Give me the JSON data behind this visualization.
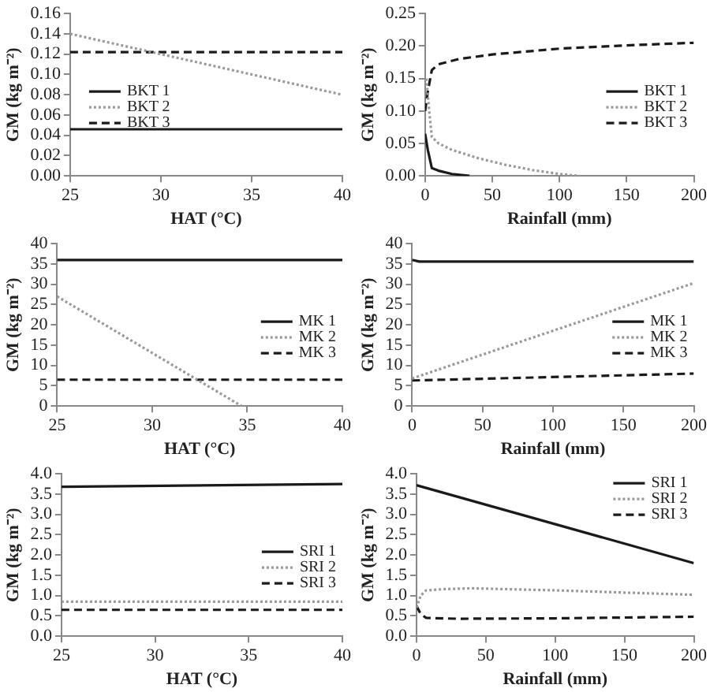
{
  "chart_data": [
    {
      "type": "line",
      "xlabel": "HAT (°C)",
      "ylabel": "GM (kg m⁻²)",
      "xlim": [
        25,
        40
      ],
      "xticks": [
        25,
        30,
        35,
        40
      ],
      "ylim": [
        0,
        0.16
      ],
      "yticks": [
        {
          "value": 0,
          "label": "0.00"
        },
        {
          "value": 0.02,
          "label": "0.02"
        },
        {
          "value": 0.04,
          "label": "0.04"
        },
        {
          "value": 0.06,
          "label": "0.06"
        },
        {
          "value": 0.08,
          "label": "0.08"
        },
        {
          "value": 0.1,
          "label": "0.10"
        },
        {
          "value": 0.12,
          "label": "0.12"
        },
        {
          "value": 0.14,
          "label": "0.14"
        },
        {
          "value": 0.16,
          "label": "0.16"
        }
      ],
      "grid": false,
      "legend": "left",
      "marker": "none",
      "series": [
        {
          "name": "BKT 1",
          "color": "#1a1a1a",
          "line_style": "solid",
          "x": [
            25,
            40
          ],
          "values": [
            0.046,
            0.046
          ]
        },
        {
          "name": "BKT 2",
          "color": "#999999",
          "line_style": "dotted",
          "x": [
            25,
            40
          ],
          "values": [
            0.14,
            0.08
          ]
        },
        {
          "name": "BKT 3",
          "color": "#1a1a1a",
          "line_style": "dashed",
          "x": [
            25,
            40
          ],
          "values": [
            0.122,
            0.122
          ]
        }
      ]
    },
    {
      "type": "line",
      "xlabel": "Rainfall (mm)",
      "ylabel": "GM (kg m⁻²)",
      "xlim": [
        0,
        200
      ],
      "xticks": [
        0,
        50,
        100,
        150,
        200
      ],
      "ylim": [
        0,
        0.25
      ],
      "yticks": [
        {
          "value": 0,
          "label": "0.00"
        },
        {
          "value": 0.05,
          "label": "0.05"
        },
        {
          "value": 0.1,
          "label": "0.10"
        },
        {
          "value": 0.15,
          "label": "0.15"
        },
        {
          "value": 0.2,
          "label": "0.20"
        },
        {
          "value": 0.25,
          "label": "0.25"
        }
      ],
      "grid": false,
      "legend": "right",
      "marker": "none",
      "series": [
        {
          "name": "BKT 1",
          "color": "#1a1a1a",
          "line_style": "solid",
          "x": [
            0,
            2,
            5,
            10,
            20,
            33
          ],
          "values": [
            0.065,
            0.04,
            0.012,
            0.008,
            0.003,
            0
          ]
        },
        {
          "name": "BKT 2",
          "color": "#999999",
          "line_style": "dotted",
          "x": [
            1,
            3,
            5,
            10,
            20,
            40,
            60,
            80,
            100,
            115
          ],
          "values": [
            0.15,
            0.1,
            0.06,
            0.05,
            0.04,
            0.027,
            0.017,
            0.009,
            0.003,
            0
          ]
        },
        {
          "name": "BKT 3",
          "color": "#1a1a1a",
          "line_style": "dashed",
          "x": [
            0,
            2,
            5,
            10,
            25,
            50,
            100,
            150,
            200
          ],
          "values": [
            0.1,
            0.13,
            0.163,
            0.172,
            0.18,
            0.187,
            0.196,
            0.201,
            0.205
          ]
        }
      ]
    },
    {
      "type": "line",
      "xlabel": "HAT (°C)",
      "ylabel": "GM (kg m⁻²)",
      "xlim": [
        25,
        40
      ],
      "xticks": [
        25,
        30,
        35,
        40
      ],
      "ylim": [
        0,
        40
      ],
      "yticks": [
        0,
        5,
        10,
        15,
        20,
        25,
        30,
        35,
        40
      ],
      "grid": false,
      "legend": "right",
      "marker": "none",
      "series": [
        {
          "name": "MK 1",
          "color": "#1a1a1a",
          "line_style": "solid",
          "x": [
            25,
            40
          ],
          "values": [
            36,
            36
          ]
        },
        {
          "name": "MK 2",
          "color": "#999999",
          "line_style": "dotted",
          "x": [
            25,
            34.7
          ],
          "values": [
            27,
            0
          ]
        },
        {
          "name": "MK 3",
          "color": "#1a1a1a",
          "line_style": "dashed",
          "x": [
            25,
            40
          ],
          "values": [
            6.5,
            6.5
          ]
        }
      ]
    },
    {
      "type": "line",
      "xlabel": "Rainfall (mm)",
      "ylabel": "GM (kg m⁻²)",
      "xlim": [
        0,
        200
      ],
      "xticks": [
        0,
        50,
        100,
        150,
        200
      ],
      "ylim": [
        0,
        40
      ],
      "yticks": [
        0,
        5,
        10,
        15,
        20,
        25,
        30,
        35,
        40
      ],
      "grid": false,
      "legend": "right",
      "marker": "none",
      "series": [
        {
          "name": "MK 1",
          "color": "#1a1a1a",
          "line_style": "solid",
          "x": [
            0,
            5,
            200
          ],
          "values": [
            36,
            35.6,
            35.6
          ]
        },
        {
          "name": "MK 2",
          "color": "#999999",
          "line_style": "dotted",
          "x": [
            0,
            200
          ],
          "values": [
            6.8,
            30.3
          ]
        },
        {
          "name": "MK 3",
          "color": "#1a1a1a",
          "line_style": "dashed",
          "x": [
            0,
            200
          ],
          "values": [
            6.3,
            8
          ]
        }
      ]
    },
    {
      "type": "line",
      "xlabel": "HAT (°C)",
      "ylabel": "GM (kg m⁻²)",
      "xlim": [
        25,
        40
      ],
      "xticks": [
        25,
        30,
        35,
        40
      ],
      "ylim": [
        0,
        4
      ],
      "yticks": [
        {
          "value": 0,
          "label": "0.0"
        },
        {
          "value": 0.5,
          "label": "0.5"
        },
        {
          "value": 1,
          "label": "1.0"
        },
        {
          "value": 1.5,
          "label": "1.5"
        },
        {
          "value": 2,
          "label": "2.0"
        },
        {
          "value": 2.5,
          "label": "2.5"
        },
        {
          "value": 3,
          "label": "3.0"
        },
        {
          "value": 3.5,
          "label": "3.5"
        },
        {
          "value": 4,
          "label": "4.0"
        }
      ],
      "grid": false,
      "legend": "right",
      "marker": "none",
      "series": [
        {
          "name": "SRI 1",
          "color": "#1a1a1a",
          "line_style": "solid",
          "x": [
            25,
            40
          ],
          "values": [
            3.68,
            3.75
          ]
        },
        {
          "name": "SRI 2",
          "color": "#999999",
          "line_style": "dotted",
          "x": [
            25,
            40
          ],
          "values": [
            0.85,
            0.85
          ]
        },
        {
          "name": "SRI 3",
          "color": "#1a1a1a",
          "line_style": "dashed",
          "x": [
            25,
            40
          ],
          "values": [
            0.65,
            0.65
          ]
        }
      ]
    },
    {
      "type": "line",
      "xlabel": "Rainfall (mm)",
      "ylabel": "GM (kg m⁻²)",
      "xlim": [
        0,
        200
      ],
      "xticks": [
        0,
        50,
        100,
        150,
        200
      ],
      "ylim": [
        0,
        4
      ],
      "yticks": [
        {
          "value": 0,
          "label": "0.0"
        },
        {
          "value": 0.5,
          "label": "0.5"
        },
        {
          "value": 1,
          "label": "1.0"
        },
        {
          "value": 1.5,
          "label": "1.5"
        },
        {
          "value": 2,
          "label": "2.0"
        },
        {
          "value": 2.5,
          "label": "2.5"
        },
        {
          "value": 3,
          "label": "3.0"
        },
        {
          "value": 3.5,
          "label": "3.5"
        },
        {
          "value": 4,
          "label": "4.0"
        }
      ],
      "grid": false,
      "legend": "top right",
      "marker": "none",
      "series": [
        {
          "name": "SRI 1",
          "color": "#1a1a1a",
          "line_style": "solid",
          "x": [
            0,
            200
          ],
          "values": [
            3.72,
            1.8
          ]
        },
        {
          "name": "SRI 2",
          "color": "#999999",
          "line_style": "dotted",
          "x": [
            0,
            3,
            7,
            20,
            40,
            100,
            200
          ],
          "values": [
            0.7,
            1,
            1.13,
            1.16,
            1.18,
            1.13,
            1.02
          ]
        },
        {
          "name": "SRI 3",
          "color": "#1a1a1a",
          "line_style": "dashed",
          "x": [
            0,
            3,
            7,
            30,
            100,
            200
          ],
          "values": [
            0.75,
            0.55,
            0.45,
            0.43,
            0.44,
            0.48
          ]
        }
      ]
    }
  ]
}
